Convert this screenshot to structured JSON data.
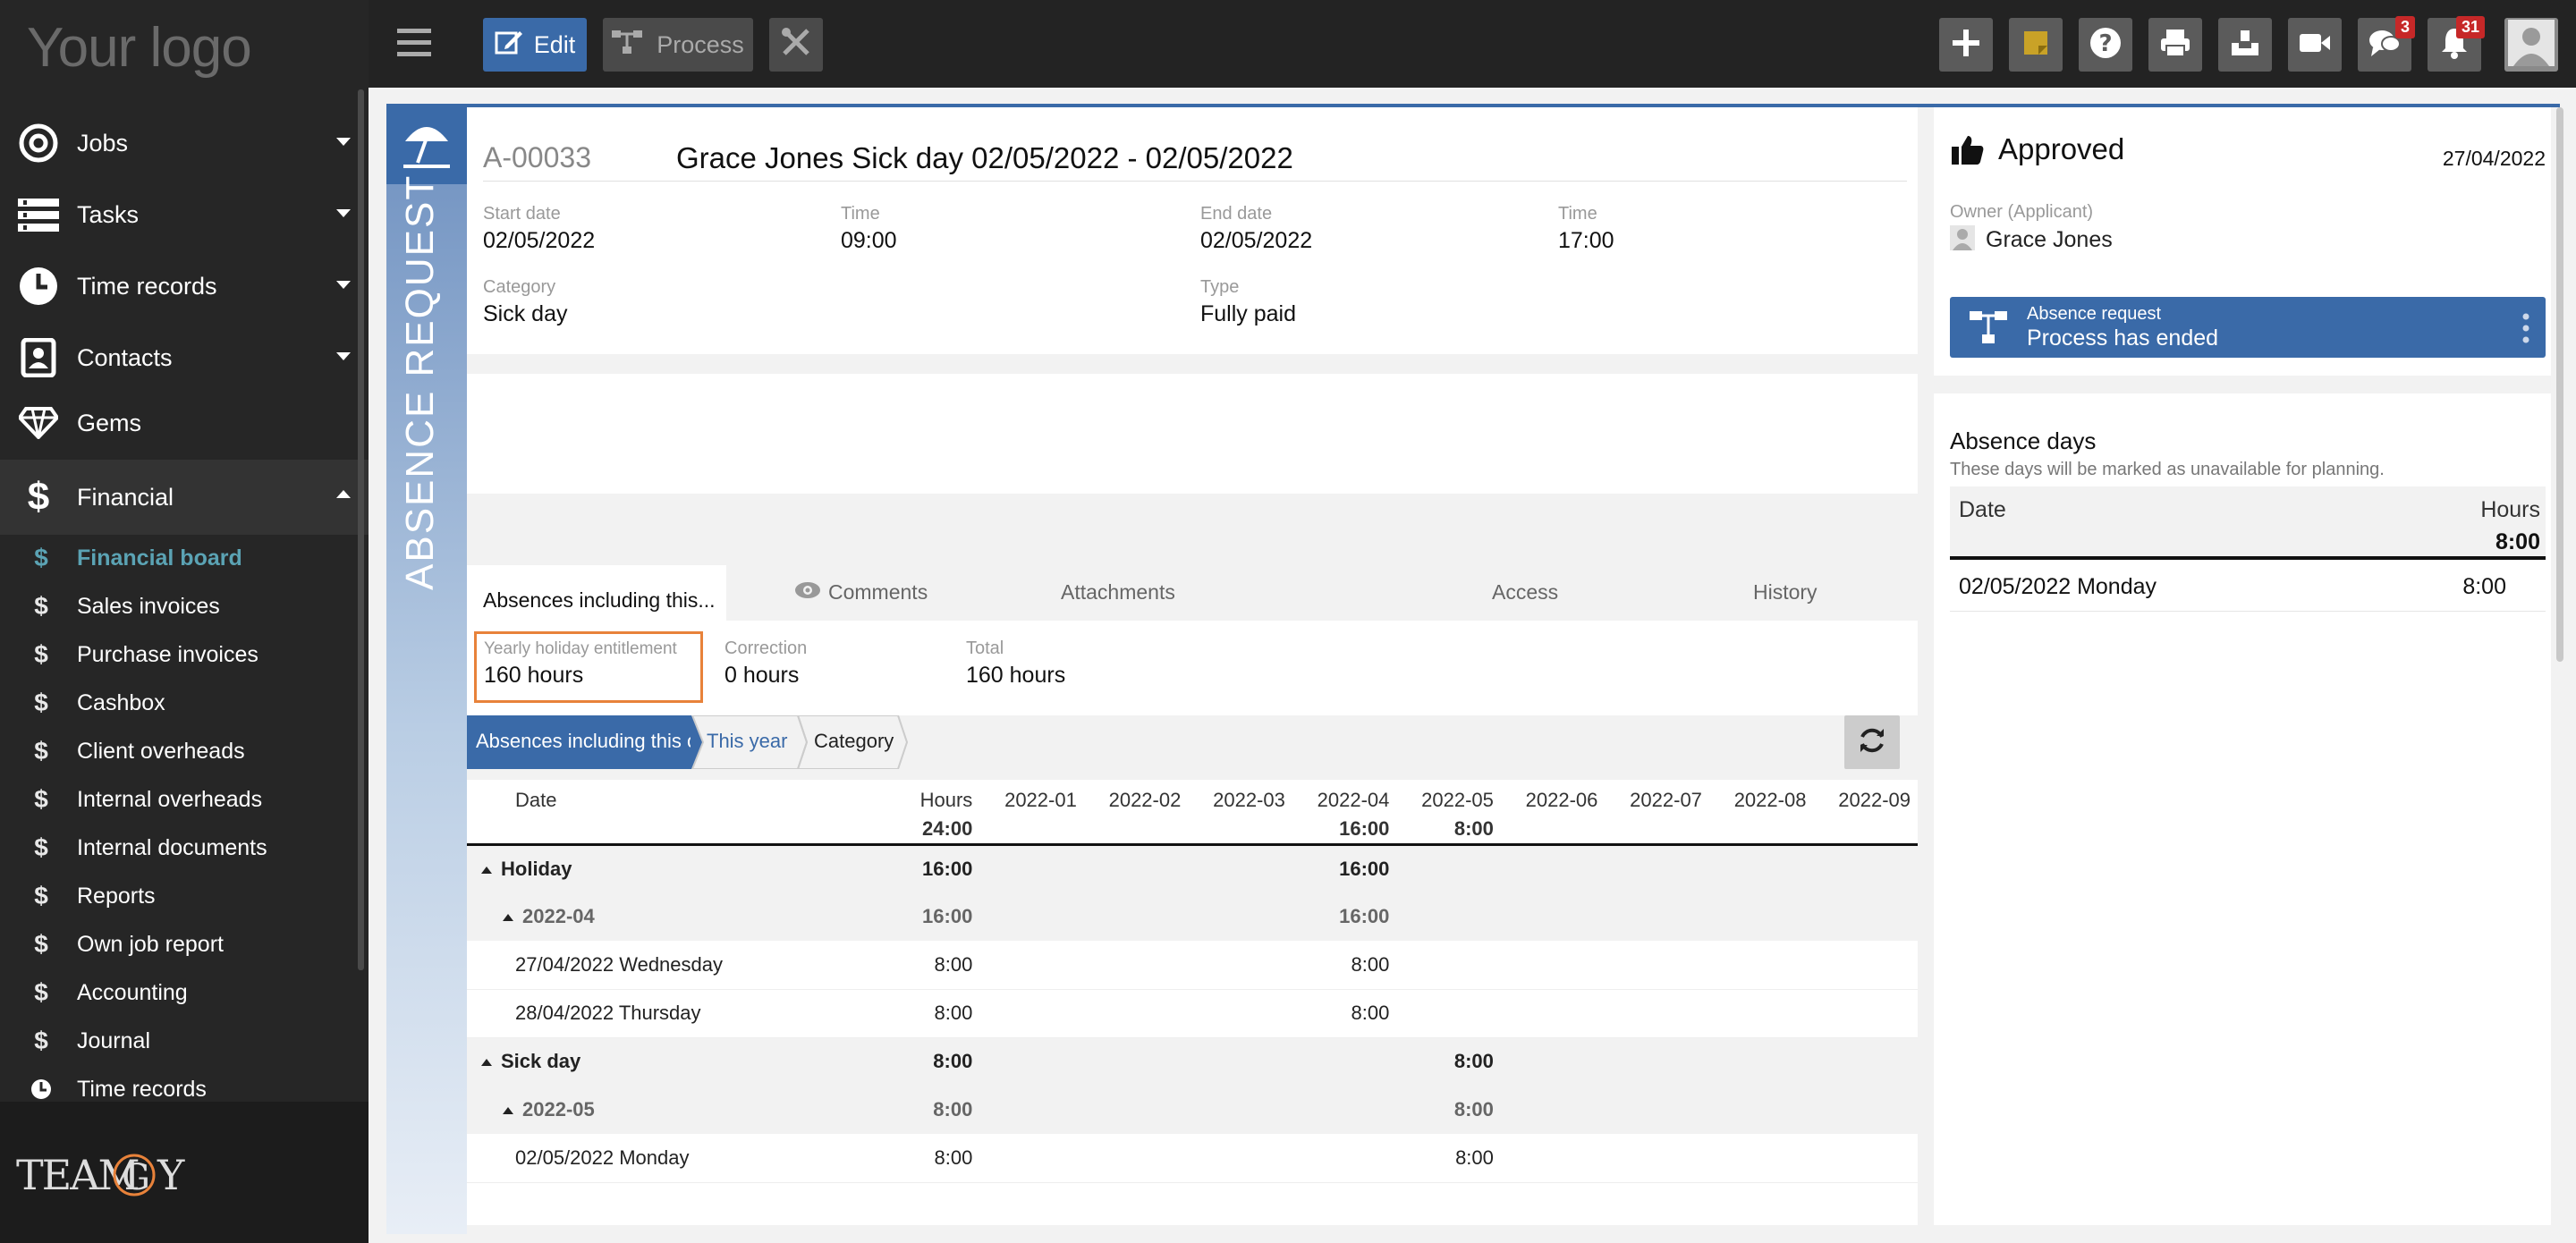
{
  "app": {
    "logo_text": "Your logo",
    "brand": "TEAMOGY"
  },
  "sidebar": {
    "main_items": [
      {
        "label": "Jobs",
        "icon": "target-icon"
      },
      {
        "label": "Tasks",
        "icon": "tasks-icon"
      },
      {
        "label": "Time records",
        "icon": "clock-icon"
      },
      {
        "label": "Contacts",
        "icon": "contacts-icon"
      },
      {
        "label": "Gems",
        "icon": "diamond-icon"
      },
      {
        "label": "Financial",
        "icon": "dollar-icon"
      }
    ],
    "financial_items": [
      {
        "label": "Financial board",
        "active": true
      },
      {
        "label": "Sales invoices"
      },
      {
        "label": "Purchase invoices"
      },
      {
        "label": "Cashbox"
      },
      {
        "label": "Client overheads"
      },
      {
        "label": "Internal overheads"
      },
      {
        "label": "Internal documents"
      },
      {
        "label": "Reports"
      },
      {
        "label": "Own job report"
      },
      {
        "label": "Accounting"
      },
      {
        "label": "Journal"
      },
      {
        "label": "Time records"
      }
    ]
  },
  "toolbar": {
    "edit_label": "Edit",
    "process_label": "Process",
    "chat_badge": "3",
    "notif_badge": "31"
  },
  "record": {
    "strip_label": "ABSENCE REQUEST",
    "id": "A-00033",
    "title": "Grace Jones Sick day 02/05/2022 - 02/05/2022",
    "start_date_label": "Start date",
    "start_date": "02/05/2022",
    "start_time_label": "Time",
    "start_time": "09:00",
    "end_date_label": "End date",
    "end_date": "02/05/2022",
    "end_time_label": "Time",
    "end_time": "17:00",
    "category_label": "Category",
    "category": "Sick day",
    "type_label": "Type",
    "type": "Fully paid"
  },
  "tabs": {
    "t1": "Absences including this...",
    "t2": "Comments",
    "t3": "Attachments",
    "t4": "Access",
    "t5": "History"
  },
  "summary": {
    "ent_label": "Yearly holiday entitlement",
    "ent_value": "160 hours",
    "corr_label": "Correction",
    "corr_value": "0 hours",
    "total_label": "Total",
    "total_value": "160 hours"
  },
  "breadcrumb": {
    "b1": "Absences including this o...",
    "b2": "This year",
    "b3": "Category"
  },
  "table": {
    "headers": [
      "Date",
      "Hours",
      "2022-01",
      "2022-02",
      "2022-03",
      "2022-04",
      "2022-05",
      "2022-06",
      "2022-07",
      "2022-08",
      "2022-09"
    ],
    "totals": [
      "",
      "24:00",
      "",
      "",
      "",
      "16:00",
      "8:00",
      "",
      "",
      "",
      ""
    ],
    "rows": [
      {
        "kind": "grp",
        "cells": [
          "Holiday",
          "16:00",
          "",
          "",
          "",
          "16:00",
          "",
          "",
          "",
          "",
          ""
        ]
      },
      {
        "kind": "sub2",
        "cells": [
          "2022-04",
          "16:00",
          "",
          "",
          "",
          "16:00",
          "",
          "",
          "",
          "",
          ""
        ]
      },
      {
        "kind": "row",
        "cells": [
          "27/04/2022 Wednesday",
          "8:00",
          "",
          "",
          "",
          "8:00",
          "",
          "",
          "",
          "",
          ""
        ]
      },
      {
        "kind": "row",
        "cells": [
          "28/04/2022 Thursday",
          "8:00",
          "",
          "",
          "",
          "8:00",
          "",
          "",
          "",
          "",
          ""
        ]
      },
      {
        "kind": "grp",
        "cells": [
          "Sick day",
          "8:00",
          "",
          "",
          "",
          "",
          "8:00",
          "",
          "",
          "",
          ""
        ]
      },
      {
        "kind": "sub2",
        "cells": [
          "2022-05",
          "8:00",
          "",
          "",
          "",
          "",
          "8:00",
          "",
          "",
          "",
          ""
        ]
      },
      {
        "kind": "row",
        "cells": [
          "02/05/2022 Monday",
          "8:00",
          "",
          "",
          "",
          "",
          "8:00",
          "",
          "",
          "",
          ""
        ]
      }
    ]
  },
  "right": {
    "status": "Approved",
    "status_date": "27/04/2022",
    "owner_label": "Owner (Applicant)",
    "owner": "Grace Jones",
    "process_title": "Absence request",
    "process_status": "Process has ended",
    "absence_title": "Absence days",
    "absence_note": "These days will be marked as unavailable for planning.",
    "col_date": "Date",
    "col_hours": "Hours",
    "total_hours": "8:00",
    "day_date": "02/05/2022 Monday",
    "day_hours": "8:00"
  },
  "colors": {
    "accent": "#3a6aa8",
    "active_nav": "#5ba3b4",
    "highlight_border": "#e8823a"
  }
}
